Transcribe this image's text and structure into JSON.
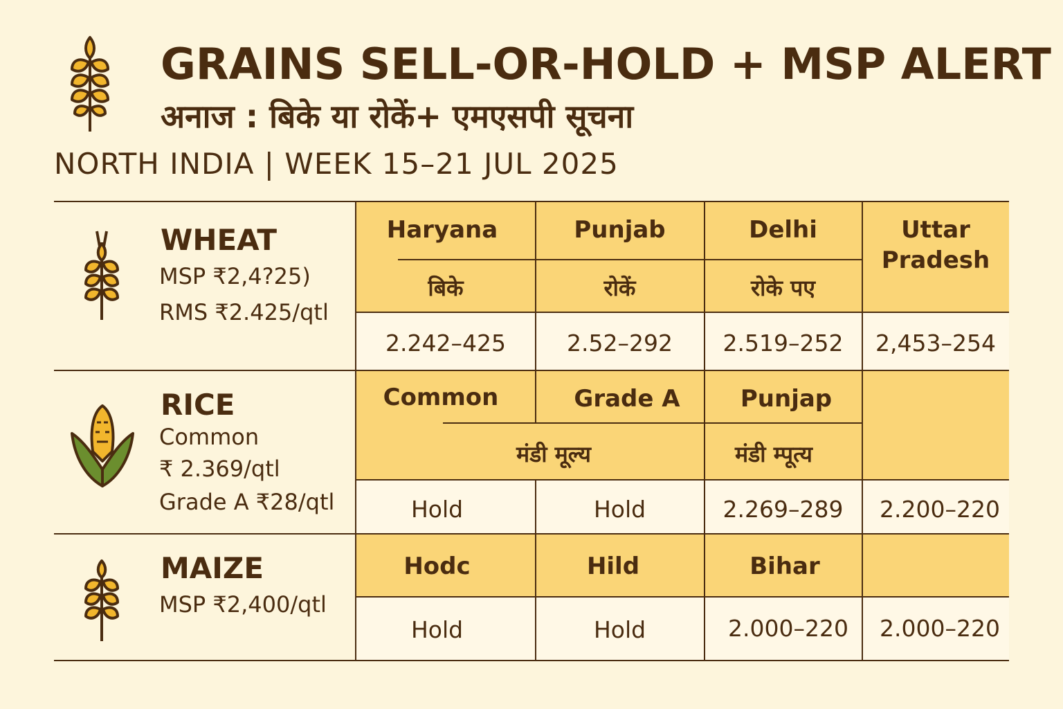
{
  "header": {
    "title": "GRAINS SELL-OR-HOLD + MSP ALERT",
    "subtitle": "अनाज : बिके या रोकें+ एमएसपी सूचना",
    "region_week": "NORTH INDIA | WEEK 15–21 JUL 2025",
    "logo_icon": "wheat-icon"
  },
  "colors": {
    "accent_yellow": "#FAD577",
    "cream": "#FFF8E6",
    "brown": "#4A2C10",
    "background": "#FDF5DC"
  },
  "wheat": {
    "name": "WHEAT",
    "line1": "MSP ₹2,4?25)",
    "line2": "RMS ₹2.425/qtl",
    "icon": "wheat-icon",
    "headers": [
      "Haryana",
      "Punjab",
      "Delhi",
      "Uttar Pradesh"
    ],
    "advice": [
      "बिके",
      "रोकें",
      "रोके पए"
    ],
    "values": [
      "2.242–425",
      "2.52–292",
      "2.519–252",
      "2,453–254"
    ]
  },
  "rice": {
    "name": "RICE",
    "line1": "Common",
    "line2": "₹ 2.369/qtl",
    "line3": "Grade A ₹28/qtl",
    "icon": "corn-icon",
    "headers": [
      "Common",
      "Grade A",
      "Punjap"
    ],
    "sub": [
      "मंडी मूल्य",
      "मंडी म्पूत्य"
    ],
    "values": [
      "Hold",
      "Hold",
      "2.269–289",
      "2.200–220"
    ]
  },
  "maize": {
    "name": "MAIZE",
    "line1": "MSP ₹2,400/qtl",
    "icon": "wheat-icon",
    "headers": [
      "Hodc",
      "Hild",
      "Bihar"
    ],
    "values": [
      "Hold",
      "Hold",
      "2.000–220",
      "2.000–220"
    ]
  }
}
